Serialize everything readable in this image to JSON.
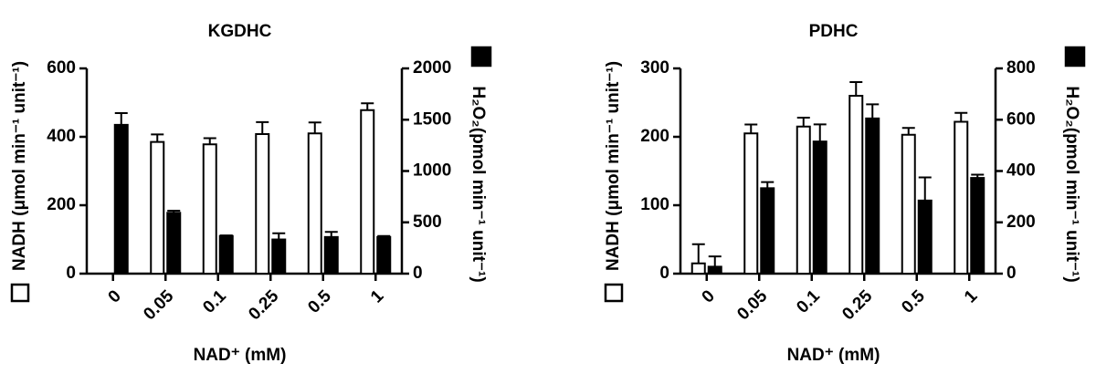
{
  "chart_data": [
    {
      "type": "bar",
      "title": "KGDHC",
      "x_label": "NAD⁺ (mM)",
      "y_label": "NADH (μmol min⁻¹ unit⁻¹)",
      "y2_label": "H₂O₂(pmol min⁻¹ unit⁻¹)",
      "categories": [
        "0",
        "0.05",
        "0.1",
        "0.25",
        "0.5",
        "1"
      ],
      "ylim": [
        0,
        600
      ],
      "yticks": [
        0,
        200,
        400,
        600
      ],
      "y2lim": [
        0,
        2000
      ],
      "y2ticks": [
        0,
        500,
        1000,
        1500,
        2000
      ],
      "series": [
        {
          "color": "#ffffff",
          "values": [
            null,
            385,
            378,
            408,
            410,
            478
          ],
          "errors": [
            null,
            22,
            18,
            35,
            32,
            20
          ]
        },
        {
          "color": "#000000",
          "axis": "y2",
          "values": [
            1450,
            593,
            367,
            333,
            357,
            357
          ],
          "errors": [
            115,
            20,
            5,
            60,
            50,
            10
          ]
        }
      ]
    },
    {
      "type": "bar",
      "title": "PDHC",
      "x_label": "NAD⁺ (mM)",
      "y_label": "NADH (μmol min⁻¹ unit⁻¹)",
      "y2_label": "H₂O₂(pmol min⁻¹ unit⁻¹)",
      "categories": [
        "0",
        "0.05",
        "0.1",
        "0.25",
        "0.5",
        "1"
      ],
      "ylim": [
        0,
        300
      ],
      "yticks": [
        0,
        100,
        200,
        300
      ],
      "y2lim": [
        0,
        800
      ],
      "y2ticks": [
        0,
        200,
        400,
        600,
        800
      ],
      "series": [
        {
          "color": "#ffffff",
          "values": [
            15,
            205,
            215,
            260,
            203,
            222
          ],
          "errors": [
            28,
            13,
            13,
            20,
            10,
            13
          ]
        },
        {
          "color": "#000000",
          "axis": "y2",
          "values": [
            27,
            333,
            515,
            605,
            285,
            373
          ],
          "errors": [
            40,
            24,
            67,
            55,
            90,
            13
          ]
        }
      ]
    }
  ]
}
